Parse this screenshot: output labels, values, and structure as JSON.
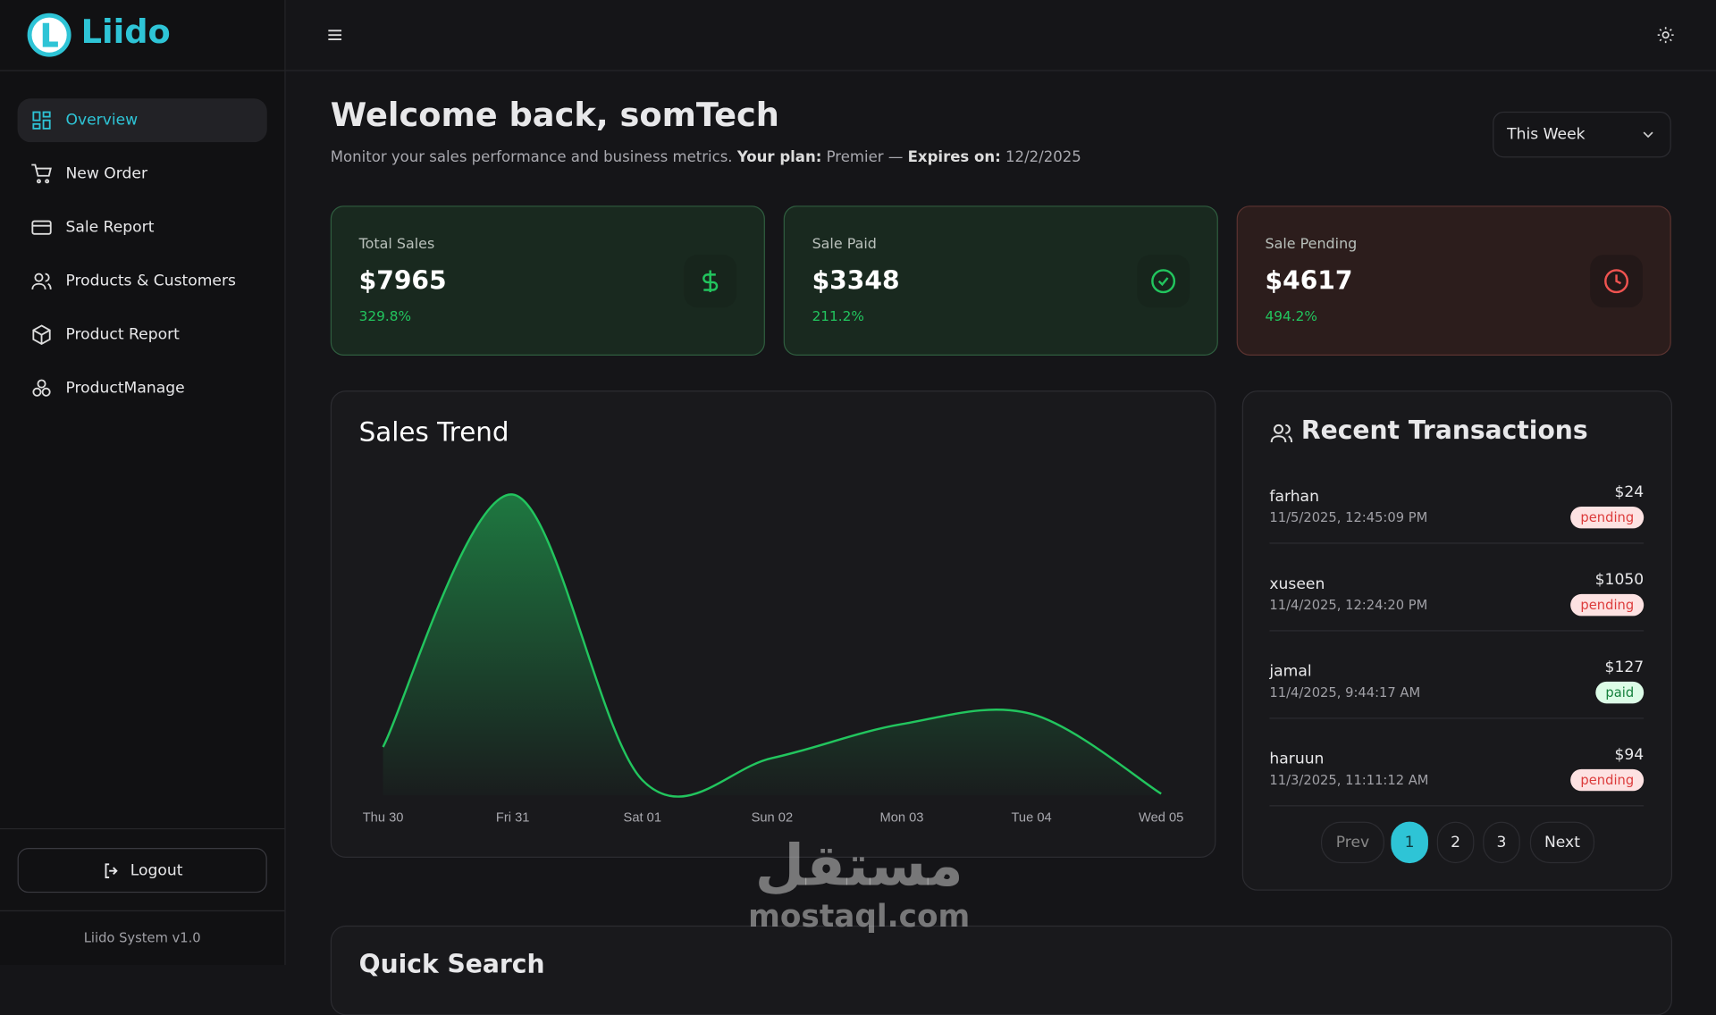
{
  "brand": "Liido",
  "nav": [
    "Overview",
    "New Order",
    "Sale Report",
    "Products & Customers",
    "Product Report",
    "ProductManage"
  ],
  "logout": "Logout",
  "version": "Liido System v1.0",
  "welcome": {
    "title": "Welcome back, somTech",
    "subtitle": "Monitor your sales performance and business metrics.",
    "plan_label": "Your plan:",
    "plan": "Premier —",
    "expires_label": "Expires on:",
    "expires": "12/2/2025"
  },
  "period": "This Week",
  "stats": [
    {
      "label": "Total Sales",
      "value": "$7965",
      "change": "329.8%"
    },
    {
      "label": "Sale Paid",
      "value": "$3348",
      "change": "211.2%"
    },
    {
      "label": "Sale Pending",
      "value": "$4617",
      "change": "494.2%"
    }
  ],
  "chart_data": {
    "type": "line",
    "title": "Sales Trend",
    "categories": [
      "Thu 30",
      "Fri 31",
      "Sat 01",
      "Sun 02",
      "Mon 03",
      "Tue 04",
      "Wed 05"
    ],
    "values": [
      700,
      4350,
      220,
      540,
      1030,
      1177,
      24
    ],
    "color": "#22c55e"
  },
  "transactions": {
    "title": "Recent Transactions",
    "rows": [
      {
        "name": "farhan",
        "date": "11/5/2025, 12:45:09 PM",
        "amount": "$24",
        "status": "pending"
      },
      {
        "name": "xuseen",
        "date": "11/4/2025, 12:24:20 PM",
        "amount": "$1050",
        "status": "pending"
      },
      {
        "name": "jamal",
        "date": "11/4/2025, 9:44:17 AM",
        "amount": "$127",
        "status": "paid"
      },
      {
        "name": "haruun",
        "date": "11/3/2025, 11:11:12 AM",
        "amount": "$94",
        "status": "pending"
      }
    ]
  },
  "pagination": [
    "Prev",
    "1",
    "2",
    "3",
    "Next"
  ],
  "quick_search": {
    "title": "Quick Search"
  },
  "watermark": {
    "arabic": "مستقل",
    "latin": "mostaql.com"
  }
}
